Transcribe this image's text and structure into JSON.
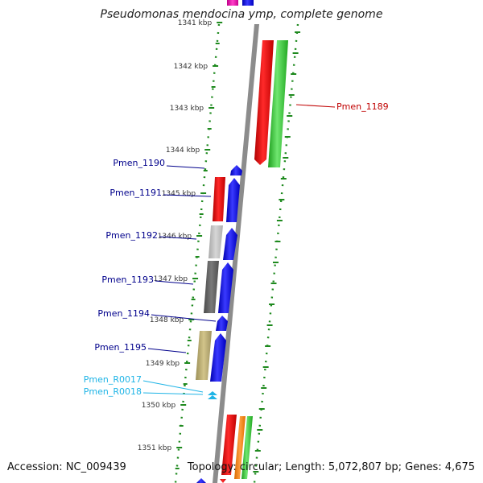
{
  "title": "Pseudomonas mendocina ymp, complete genome",
  "footer": {
    "accession": "Accession: NC_009439",
    "summary": "Topology: circular; Length: 5,072,807 bp; Genes: 4,675"
  },
  "colors": {
    "backbone": "#8c8c8c",
    "tick": "#1f8a1f",
    "label_ticks": "#333333",
    "gene_label": "#00008b",
    "highlight_label": "#c00000",
    "rna_label": "#1eb4e6"
  },
  "scale": {
    "ticks": [
      {
        "label": "1341 kbp"
      },
      {
        "label": "1342 kbp"
      },
      {
        "label": "1343 kbp"
      },
      {
        "label": "1344 kbp"
      },
      {
        "label": "1345 kbp"
      },
      {
        "label": "1346 kbp"
      },
      {
        "label": "1347 kbp"
      },
      {
        "label": "1348 kbp"
      },
      {
        "label": "1349 kbp"
      },
      {
        "label": "1350 kbp"
      },
      {
        "label": "1351 kbp"
      }
    ]
  },
  "labels": [
    {
      "name": "Pmen_1189",
      "kind": "highlight"
    },
    {
      "name": "Pmen_1190",
      "kind": "gene"
    },
    {
      "name": "Pmen_1191",
      "kind": "gene"
    },
    {
      "name": "Pmen_1192",
      "kind": "gene"
    },
    {
      "name": "Pmen_1193",
      "kind": "gene"
    },
    {
      "name": "Pmen_1194",
      "kind": "gene"
    },
    {
      "name": "Pmen_1195",
      "kind": "gene"
    },
    {
      "name": "Pmen_R0017",
      "kind": "rna"
    },
    {
      "name": "Pmen_R0018",
      "kind": "rna"
    }
  ]
}
